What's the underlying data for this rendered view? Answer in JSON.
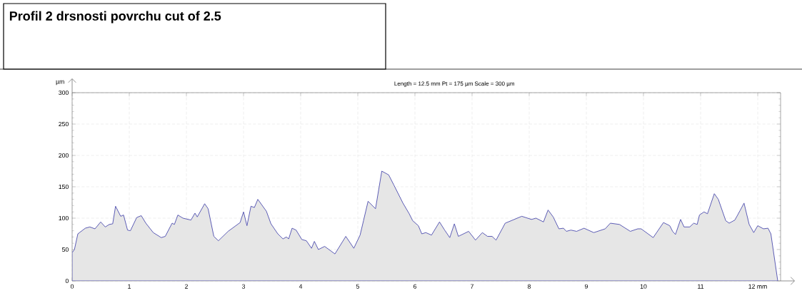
{
  "chart_data": {
    "type": "area",
    "title": "Profil 2 drsnosti povrchu cut of 2.5",
    "subtitle": "Length = 12.5 mm  Pt = 175 µm  Scale = 300 µm",
    "ylabel": "µm",
    "x": [
      0,
      0.04,
      0.1,
      0.23,
      0.31,
      0.4,
      0.5,
      0.58,
      0.65,
      0.71,
      0.76,
      0.85,
      0.9,
      0.97,
      1.02,
      1.13,
      1.21,
      1.29,
      1.42,
      1.56,
      1.63,
      1.75,
      1.79,
      1.85,
      1.94,
      2.08,
      2.15,
      2.19,
      2.32,
      2.38,
      2.48,
      2.56,
      2.73,
      2.94,
      3.0,
      3.06,
      3.13,
      3.19,
      3.25,
      3.4,
      3.48,
      3.6,
      3.69,
      3.75,
      3.79,
      3.85,
      3.92,
      4.02,
      4.1,
      4.19,
      4.24,
      4.31,
      4.42,
      4.6,
      4.79,
      4.93,
      5.04,
      5.1,
      5.18,
      5.31,
      5.42,
      5.54,
      5.63,
      5.79,
      5.9,
      5.96,
      6.06,
      6.12,
      6.19,
      6.29,
      6.43,
      6.52,
      6.61,
      6.69,
      6.76,
      6.94,
      7.06,
      7.18,
      7.27,
      7.35,
      7.42,
      7.58,
      7.87,
      8.04,
      8.12,
      8.25,
      8.33,
      8.42,
      8.52,
      8.6,
      8.65,
      8.73,
      8.83,
      8.96,
      9.13,
      9.33,
      9.42,
      9.58,
      9.77,
      9.9,
      9.96,
      10.17,
      10.35,
      10.46,
      10.51,
      10.56,
      10.65,
      10.71,
      10.81,
      10.88,
      10.94,
      10.98,
      11.06,
      11.12,
      11.24,
      11.31,
      11.44,
      11.5,
      11.6,
      11.69,
      11.76,
      11.85,
      11.93,
      12.0,
      12.1,
      12.18,
      12.23,
      12.35
    ],
    "series": [
      {
        "color": "#e6e6e6",
        "values": [
          45,
          50,
          75,
          84,
          86,
          83,
          94,
          86,
          90,
          91,
          119,
          103,
          105,
          81,
          80,
          101,
          104,
          92,
          77,
          69,
          71,
          92,
          90,
          105,
          100,
          97,
          108,
          102,
          123,
          115,
          71,
          64,
          79,
          93,
          110,
          88,
          119,
          117,
          130,
          111,
          91,
          75,
          67,
          70,
          67,
          84,
          81,
          66,
          64,
          52,
          63,
          50,
          55,
          43,
          71,
          52,
          73,
          96,
          127,
          115,
          175,
          169,
          153,
          124,
          107,
          96,
          88,
          75,
          77,
          73,
          94,
          81,
          69,
          91,
          71,
          79,
          65,
          77,
          71,
          71,
          65,
          92,
          103,
          98,
          100,
          94,
          113,
          102,
          83,
          84,
          79,
          81,
          79,
          84,
          77,
          83,
          92,
          90,
          79,
          83,
          83,
          69,
          93,
          88,
          79,
          74,
          98,
          86,
          86,
          92,
          90,
          105,
          110,
          107,
          139,
          130,
          96,
          92,
          97,
          112,
          124,
          90,
          77,
          88,
          83,
          84,
          75,
          0
        ]
      }
    ],
    "xlim": [
      0,
      12.4
    ],
    "ylim": [
      0,
      300
    ],
    "xticks": [
      0,
      1,
      2,
      3,
      4,
      5,
      6,
      7,
      8,
      9,
      10,
      11,
      {
        "value": 12,
        "label": "12 mm"
      }
    ],
    "yticks": [
      0,
      50,
      100,
      150,
      200,
      250,
      300
    ],
    "grid": true
  }
}
